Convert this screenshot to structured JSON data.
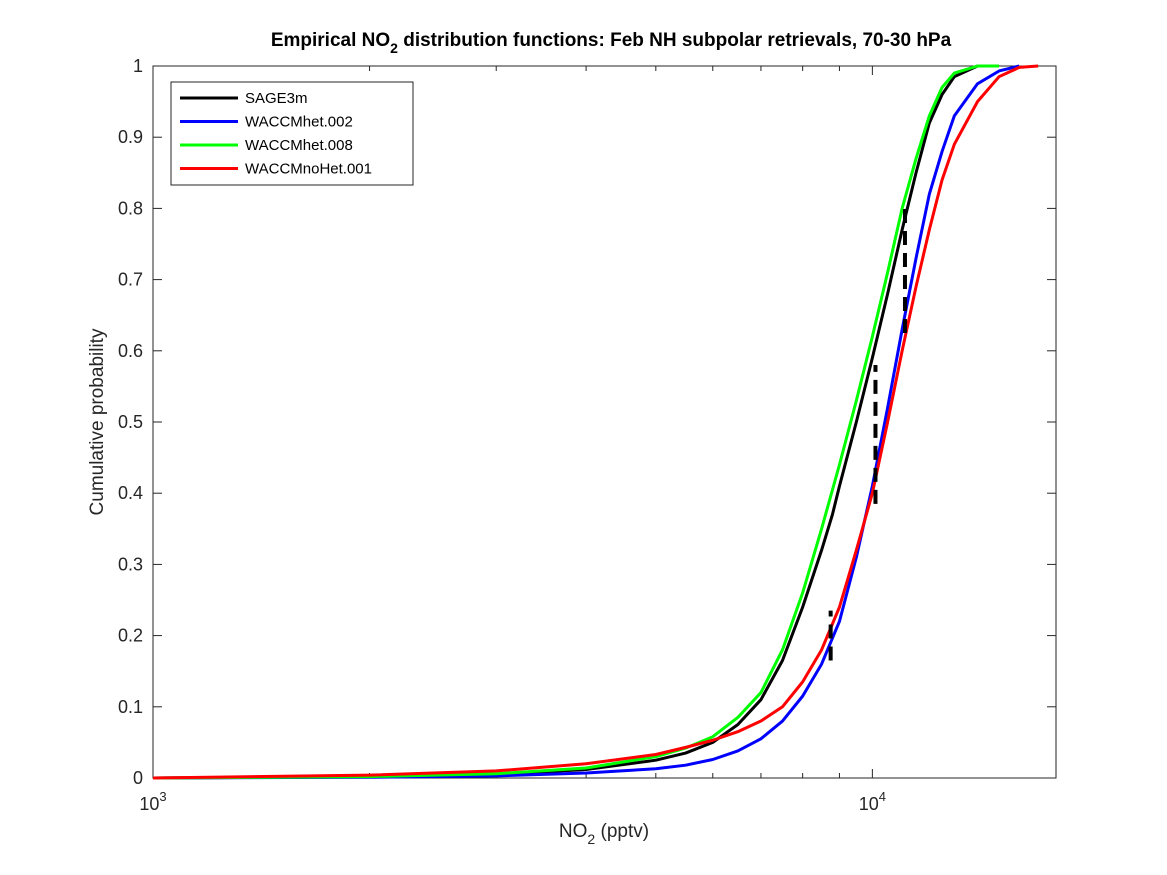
{
  "chart_data": {
    "type": "line",
    "title": {
      "prefix": "Empirical NO",
      "subscript": "2",
      "suffix": " distribution functions: Feb NH subpolar retrievals, 70-30 hPa"
    },
    "xlabel": {
      "prefix": "NO",
      "subscript": "2",
      "suffix": " (pptv)"
    },
    "ylabel": "Cumulative probability",
    "xscale": "log",
    "xlim": [
      1000,
      18000
    ],
    "ylim": [
      0,
      1
    ],
    "yticks": [
      "0",
      "0.1",
      "0.2",
      "0.3",
      "0.4",
      "0.5",
      "0.6",
      "0.7",
      "0.8",
      "0.9",
      "1"
    ],
    "xticks": [
      {
        "value": 1000,
        "base": "10",
        "exp": "3"
      },
      {
        "value": 10000,
        "base": "10",
        "exp": "4"
      }
    ],
    "grid": false,
    "legend_position": "top-left",
    "series": [
      {
        "name": "SAGE3m",
        "color": "#000000",
        "x": [
          1000,
          2000,
          3000,
          4000,
          5000,
          5500,
          6000,
          6500,
          7000,
          7500,
          8000,
          8500,
          8800,
          9000,
          9500,
          10000,
          10500,
          11000,
          11500,
          12000,
          12500,
          13000,
          14000,
          15000
        ],
        "y": [
          0.0,
          0.002,
          0.005,
          0.012,
          0.025,
          0.035,
          0.05,
          0.075,
          0.11,
          0.165,
          0.24,
          0.32,
          0.37,
          0.41,
          0.5,
          0.59,
          0.68,
          0.77,
          0.85,
          0.92,
          0.96,
          0.985,
          1.0,
          1.0
        ]
      },
      {
        "name": "WACCMhet.002",
        "color": "#0000ff",
        "x": [
          1000,
          2000,
          3000,
          4000,
          5000,
          5500,
          6000,
          6500,
          7000,
          7500,
          8000,
          8500,
          9000,
          9500,
          10000,
          10500,
          11000,
          11500,
          12000,
          12500,
          13000,
          14000,
          15000,
          16000
        ],
        "y": [
          0.0,
          0.001,
          0.003,
          0.007,
          0.013,
          0.018,
          0.026,
          0.038,
          0.055,
          0.08,
          0.115,
          0.16,
          0.22,
          0.31,
          0.41,
          0.52,
          0.63,
          0.73,
          0.82,
          0.88,
          0.93,
          0.975,
          0.993,
          1.0
        ]
      },
      {
        "name": "WACCMhet.008",
        "color": "#00ff00",
        "x": [
          1000,
          2000,
          3000,
          4000,
          5000,
          5500,
          6000,
          6500,
          7000,
          7500,
          8000,
          8500,
          9000,
          9500,
          10000,
          10500,
          11000,
          11500,
          12000,
          12500,
          13000,
          14000,
          15000
        ],
        "y": [
          0.0,
          0.002,
          0.006,
          0.014,
          0.03,
          0.042,
          0.058,
          0.085,
          0.12,
          0.18,
          0.26,
          0.35,
          0.44,
          0.53,
          0.62,
          0.71,
          0.8,
          0.87,
          0.93,
          0.97,
          0.99,
          1.0,
          1.0
        ]
      },
      {
        "name": "WACCMnoHet.001",
        "color": "#ff0000",
        "x": [
          1000,
          2000,
          3000,
          4000,
          5000,
          5500,
          6000,
          6500,
          7000,
          7500,
          8000,
          8500,
          9000,
          9500,
          10000,
          10500,
          11000,
          11500,
          12000,
          12500,
          13000,
          14000,
          15000,
          16000,
          17000
        ],
        "y": [
          0.0,
          0.004,
          0.01,
          0.02,
          0.033,
          0.043,
          0.053,
          0.065,
          0.08,
          0.1,
          0.135,
          0.18,
          0.24,
          0.32,
          0.4,
          0.5,
          0.6,
          0.69,
          0.77,
          0.84,
          0.89,
          0.95,
          0.985,
          0.998,
          1.0
        ]
      }
    ],
    "annotations": {
      "dashed_black_segments": [
        {
          "x": 8750,
          "y": [
            0.165,
            0.235
          ]
        },
        {
          "x": 10100,
          "y": [
            0.385,
            0.58
          ]
        },
        {
          "x": 11100,
          "y": [
            0.625,
            0.81
          ]
        }
      ]
    }
  }
}
